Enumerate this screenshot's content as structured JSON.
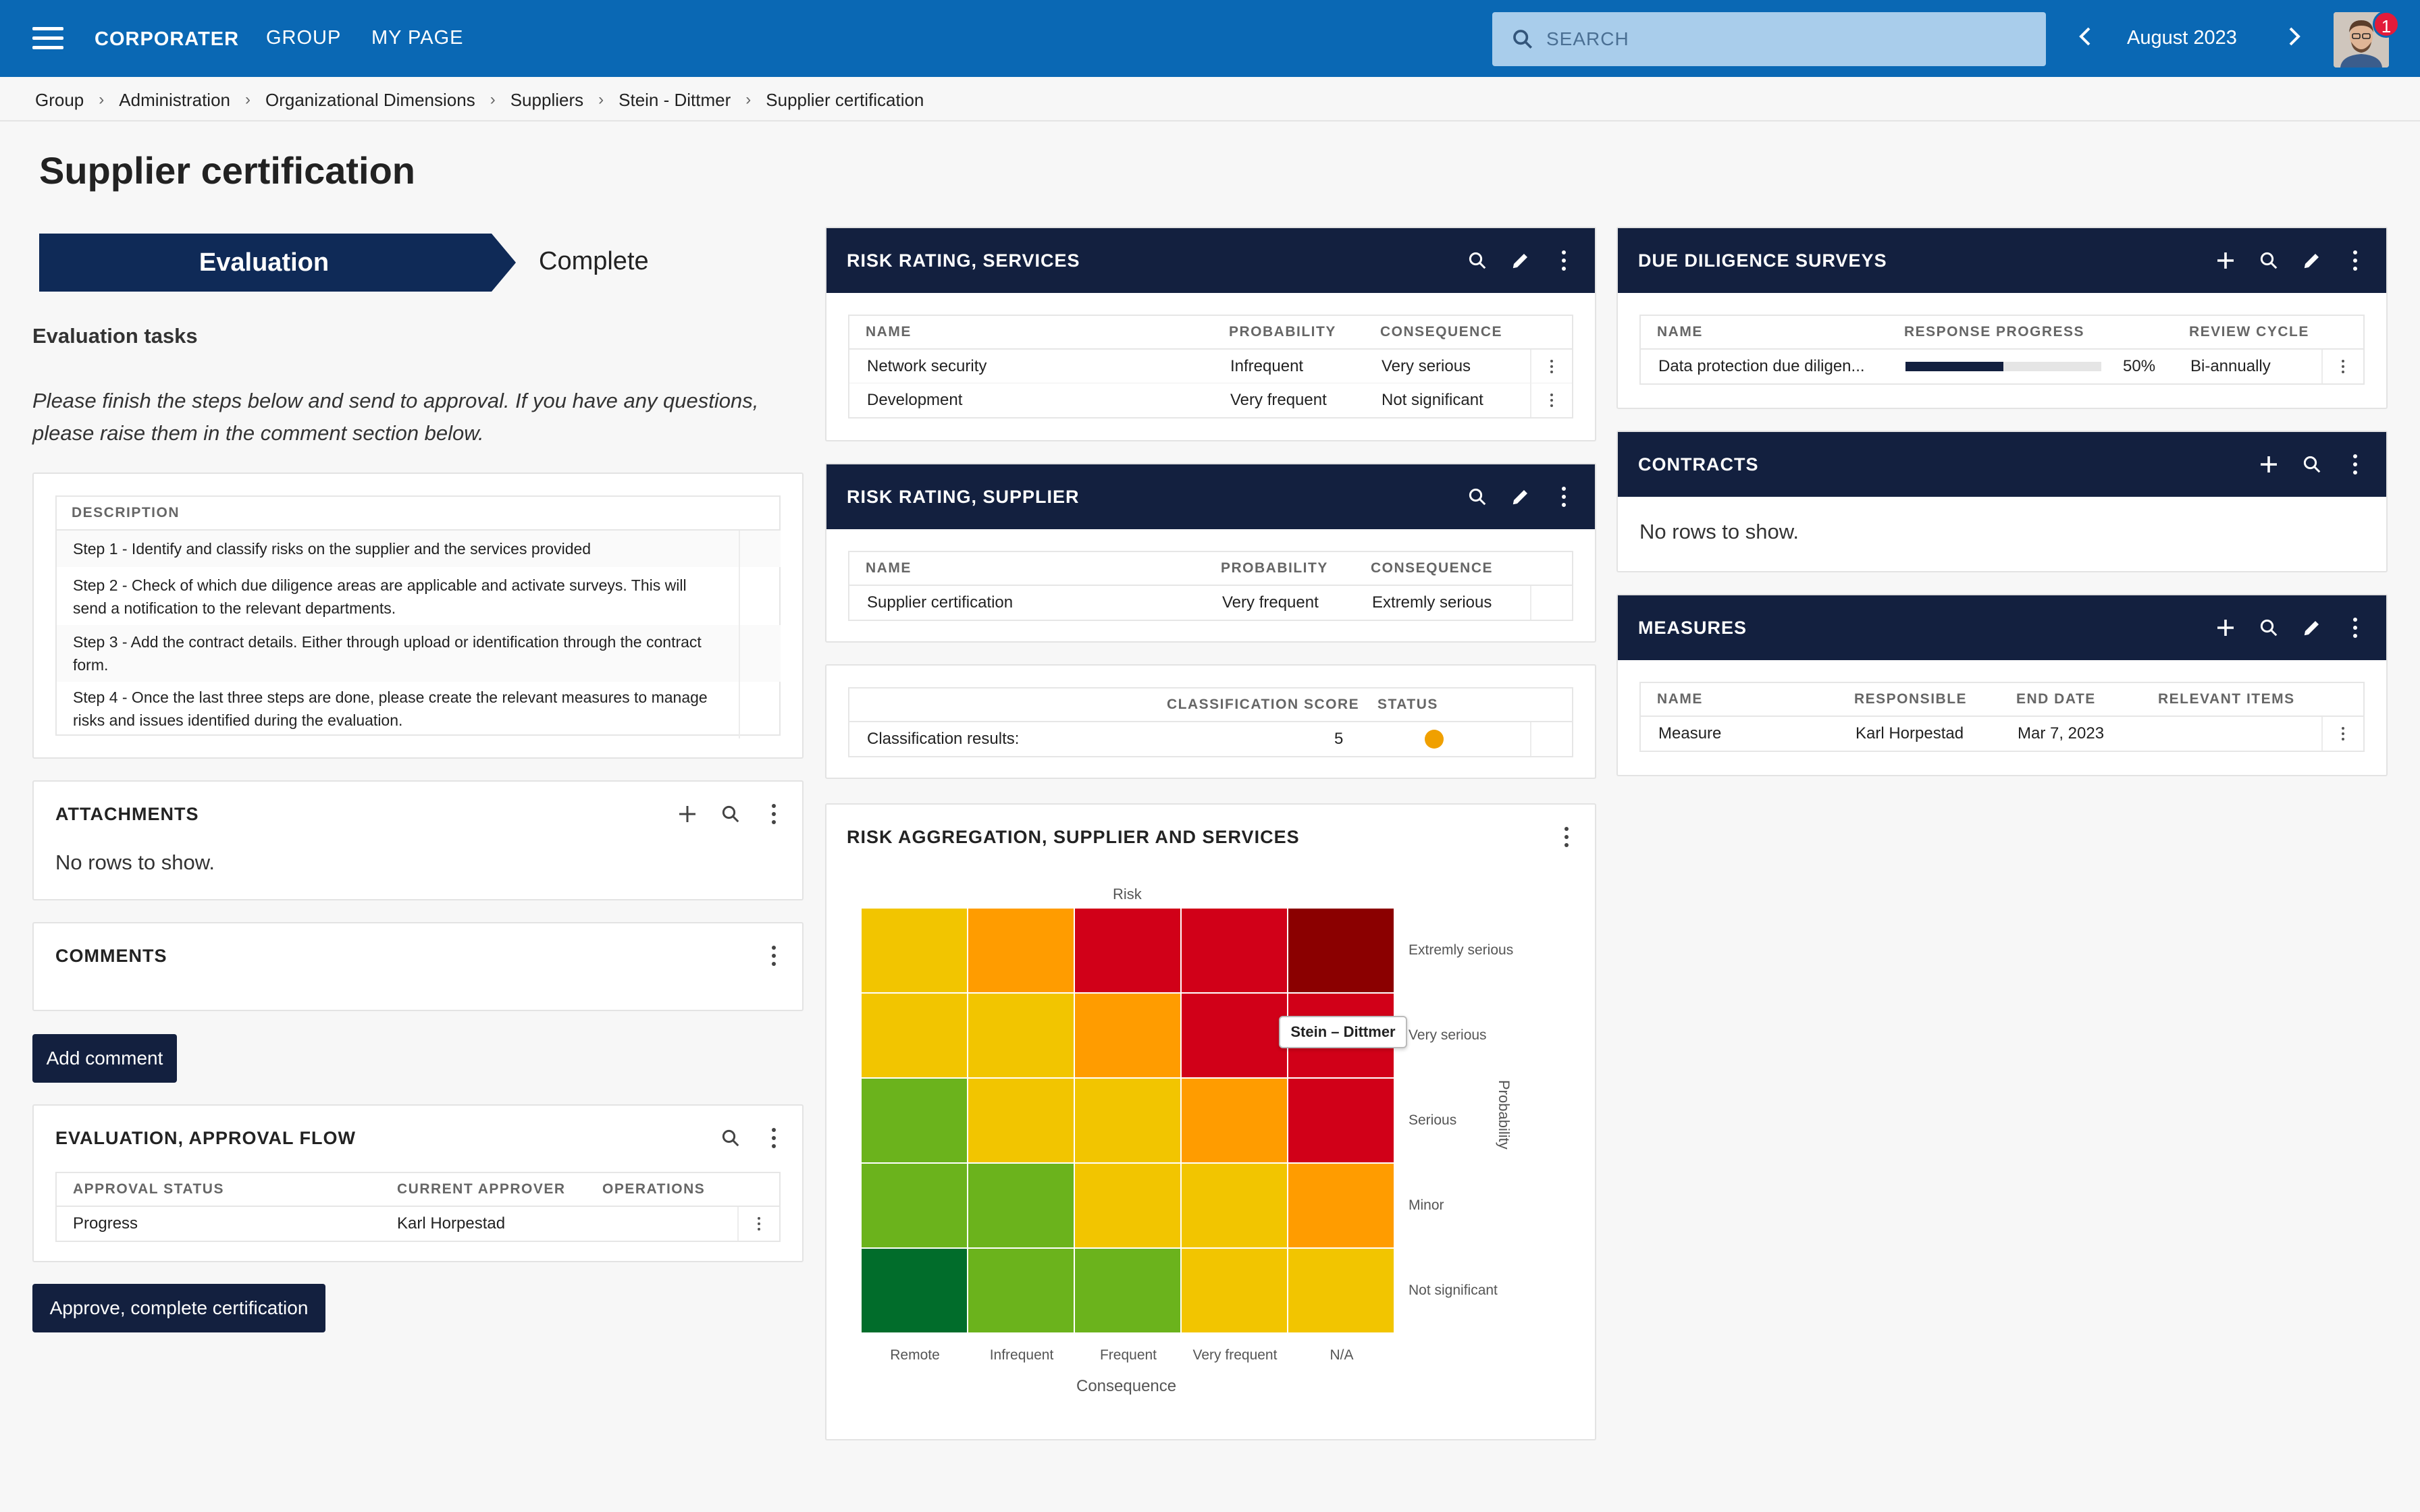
{
  "topbar": {
    "logo": "CORPORATER",
    "nav": [
      "GROUP",
      "MY PAGE"
    ],
    "search_placeholder": "SEARCH",
    "period": "August 2023",
    "notification_count": "1"
  },
  "breadcrumb": [
    "Group",
    "Administration",
    "Organizational Dimensions",
    "Suppliers",
    "Stein - Dittmer",
    "Supplier certification"
  ],
  "page_title": "Supplier certification",
  "stepper": {
    "active": "Evaluation",
    "next": "Complete"
  },
  "evaluation": {
    "section_title": "Evaluation tasks",
    "instructions": "Please finish the steps below and send to approval. If you have any questions, please raise them in the comment section below.",
    "description_header": "DESCRIPTION",
    "steps": [
      "Step 1 - Identify and classify risks on the supplier and the services provided",
      "Step 2 - Check of which due diligence areas are applicable and activate surveys. This will send a notification to the relevant departments.",
      "Step 3 - Add the contract details. Either through upload or identification through the contract form.",
      "Step 4 - Once the last three steps are done, please create the relevant measures to manage risks and issues identified during the evaluation."
    ]
  },
  "attachments": {
    "title": "ATTACHMENTS",
    "empty": "No rows to show."
  },
  "comments": {
    "title": "COMMENTS",
    "add_button": "Add comment"
  },
  "approval": {
    "title": "EVALUATION, APPROVAL FLOW",
    "headers": [
      "APPROVAL STATUS",
      "CURRENT APPROVER",
      "OPERATIONS"
    ],
    "rows": [
      {
        "status": "Progress",
        "approver": "Karl Horpestad",
        "operations": ""
      }
    ],
    "approve_button": "Approve, complete certification"
  },
  "risk_services": {
    "title": "RISK RATING, SERVICES",
    "headers": [
      "NAME",
      "PROBABILITY",
      "CONSEQUENCE"
    ],
    "rows": [
      {
        "name": "Network security",
        "probability": "Infrequent",
        "consequence": "Very serious"
      },
      {
        "name": "Development",
        "probability": "Very frequent",
        "consequence": "Not significant"
      }
    ]
  },
  "risk_supplier": {
    "title": "RISK RATING, SUPPLIER",
    "headers": [
      "NAME",
      "PROBABILITY",
      "CONSEQUENCE"
    ],
    "rows": [
      {
        "name": "Supplier certification",
        "probability": "Very frequent",
        "consequence": "Extremly serious"
      }
    ]
  },
  "classification": {
    "headers": [
      "CLASSIFICATION SCORE",
      "STATUS"
    ],
    "label": "Classification results:",
    "score": "5",
    "status_color": "#f0a000"
  },
  "aggregation": {
    "title": "RISK AGGREGATION, SUPPLIER AND SERVICES",
    "top_label": "Risk",
    "x_axis_title": "Consequence",
    "y_axis_title": "Probability",
    "x_labels": [
      "Remote",
      "Infrequent",
      "Frequent",
      "Very frequent",
      "N/A"
    ],
    "y_labels": [
      "Extremly serious",
      "Very serious",
      "Serious",
      "Minor",
      "Not significant"
    ],
    "tooltip": "Stein – Dittmer",
    "colors": [
      [
        "#f2c500",
        "#ff9c00",
        "#d10018",
        "#d10018",
        "#8b0000"
      ],
      [
        "#f2c500",
        "#f2c500",
        "#ff9c00",
        "#d10018",
        "#d10018"
      ],
      [
        "#6bb31c",
        "#f2c500",
        "#f2c500",
        "#ff9c00",
        "#d10018"
      ],
      [
        "#6bb31c",
        "#6bb31c",
        "#f2c500",
        "#f2c500",
        "#ff9c00"
      ],
      [
        "#016d2b",
        "#6bb31c",
        "#6bb31c",
        "#f2c500",
        "#f2c500"
      ]
    ]
  },
  "due_diligence": {
    "title": "DUE DILIGENCE SURVEYS",
    "headers": [
      "NAME",
      "RESPONSE PROGRESS",
      "REVIEW CYCLE"
    ],
    "rows": [
      {
        "name": "Data protection due diligen...",
        "progress_label": "50%",
        "progress": 0.5,
        "cycle": "Bi-annually"
      }
    ]
  },
  "contracts": {
    "title": "CONTRACTS",
    "empty": "No rows to show."
  },
  "measures": {
    "title": "MEASURES",
    "headers": [
      "NAME",
      "RESPONSIBLE",
      "END DATE",
      "RELEVANT ITEMS"
    ],
    "rows": [
      {
        "name": "Measure",
        "responsible": "Karl Horpestad",
        "end_date": "Mar 7, 2023",
        "items": ""
      }
    ]
  }
}
